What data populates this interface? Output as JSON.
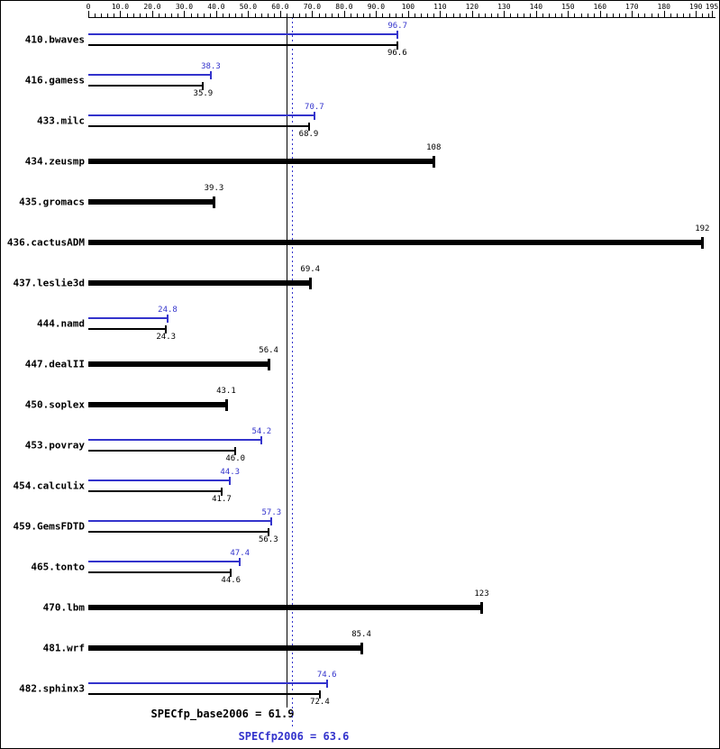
{
  "chart_data": {
    "type": "bar",
    "orientation": "horizontal",
    "axis": {
      "min": 0,
      "max": 195,
      "position": "top",
      "major_ticks": [
        0,
        10,
        20,
        30,
        40,
        50,
        60,
        70,
        80,
        90,
        100,
        110,
        120,
        130,
        140,
        150,
        160,
        170,
        180,
        190,
        195
      ],
      "tick_labels": [
        "0",
        "10.0",
        "20.0",
        "30.0",
        "40.0",
        "50.0",
        "60.0",
        "70.0",
        "80.0",
        "90.0",
        "100",
        "110",
        "120",
        "130",
        "140",
        "150",
        "160",
        "170",
        "180",
        "190",
        "195"
      ],
      "minor_tick_step": 2
    },
    "colors": {
      "peak": "#3333cc",
      "base": "#000000"
    },
    "benchmarks": [
      {
        "name": "410.bwaves",
        "peak": 96.7,
        "peak_label": "96.7",
        "base": 96.6,
        "base_label": "96.6"
      },
      {
        "name": "416.gamess",
        "peak": 38.3,
        "peak_label": "38.3",
        "base": 35.9,
        "base_label": "35.9"
      },
      {
        "name": "433.milc",
        "peak": 70.7,
        "peak_label": "70.7",
        "base": 68.9,
        "base_label": "68.9"
      },
      {
        "name": "434.zeusmp",
        "peak": null,
        "peak_label": "",
        "base": 108,
        "base_label": "108"
      },
      {
        "name": "435.gromacs",
        "peak": null,
        "peak_label": "",
        "base": 39.3,
        "base_label": "39.3"
      },
      {
        "name": "436.cactusADM",
        "peak": null,
        "peak_label": "",
        "base": 192,
        "base_label": "192"
      },
      {
        "name": "437.leslie3d",
        "peak": null,
        "peak_label": "",
        "base": 69.4,
        "base_label": "69.4"
      },
      {
        "name": "444.namd",
        "peak": 24.8,
        "peak_label": "24.8",
        "base": 24.3,
        "base_label": "24.3"
      },
      {
        "name": "447.dealII",
        "peak": null,
        "peak_label": "",
        "base": 56.4,
        "base_label": "56.4"
      },
      {
        "name": "450.soplex",
        "peak": null,
        "peak_label": "",
        "base": 43.1,
        "base_label": "43.1"
      },
      {
        "name": "453.povray",
        "peak": 54.2,
        "peak_label": "54.2",
        "base": 46.0,
        "base_label": "46.0"
      },
      {
        "name": "454.calculix",
        "peak": 44.3,
        "peak_label": "44.3",
        "base": 41.7,
        "base_label": "41.7"
      },
      {
        "name": "459.GemsFDTD",
        "peak": 57.3,
        "peak_label": "57.3",
        "base": 56.3,
        "base_label": "56.3"
      },
      {
        "name": "465.tonto",
        "peak": 47.4,
        "peak_label": "47.4",
        "base": 44.6,
        "base_label": "44.6"
      },
      {
        "name": "470.lbm",
        "peak": null,
        "peak_label": "",
        "base": 123,
        "base_label": "123"
      },
      {
        "name": "481.wrf",
        "peak": null,
        "peak_label": "",
        "base": 85.4,
        "base_label": "85.4"
      },
      {
        "name": "482.sphinx3",
        "peak": 74.6,
        "peak_label": "74.6",
        "base": 72.4,
        "base_label": "72.4"
      }
    ],
    "reference_lines": [
      {
        "label": "SPECfp_base2006 = 61.9",
        "value": 61.9,
        "color": "#000000",
        "style": "solid"
      },
      {
        "label": "SPECfp2006 = 63.6",
        "value": 63.6,
        "color": "#3333cc",
        "style": "dotted"
      }
    ]
  }
}
